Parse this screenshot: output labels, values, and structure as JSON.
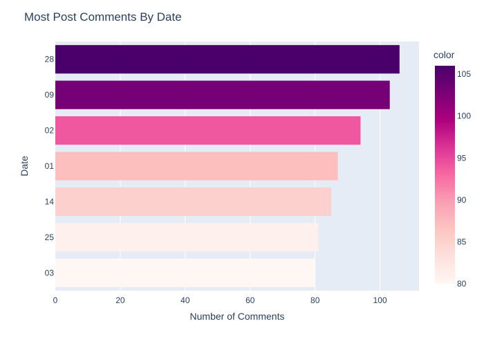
{
  "chart_data": {
    "type": "bar",
    "orientation": "horizontal",
    "title": "Most Post Comments By Date",
    "xlabel": "Number of Comments",
    "ylabel": "Date",
    "categories": [
      "28",
      "09",
      "02",
      "01",
      "14",
      "25",
      "03"
    ],
    "values": [
      106,
      103,
      94,
      87,
      85,
      81,
      80
    ],
    "xlim": [
      0,
      112
    ],
    "xticks": [
      0,
      20,
      40,
      60,
      80,
      100
    ],
    "grid": true,
    "colorbar": {
      "title": "color",
      "range": [
        80,
        106
      ],
      "ticks": [
        80,
        85,
        90,
        95,
        100,
        105
      ],
      "colorscale": [
        "#fff7f3",
        "#fde0dd",
        "#fcc5c0",
        "#fa9fb5",
        "#f768a1",
        "#dd3497",
        "#ae017e",
        "#7a0177",
        "#49006a"
      ]
    },
    "colors": {
      "plot_background": "#e5ecf6",
      "gridline": "#ffffff",
      "text": "#2a3f5f"
    }
  }
}
